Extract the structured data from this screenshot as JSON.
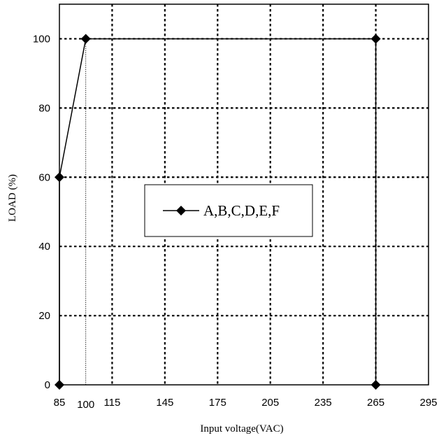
{
  "chart_data": {
    "type": "line",
    "title": "",
    "xlabel": "Input voltage(VAC)",
    "ylabel": "LOAD (%)",
    "xlim": [
      85,
      295
    ],
    "ylim": [
      0,
      110
    ],
    "x_ticks": [
      85,
      100,
      115,
      145,
      175,
      205,
      235,
      265,
      295
    ],
    "y_ticks": [
      0,
      20,
      40,
      60,
      80,
      100
    ],
    "grid": true,
    "legend_position": "center",
    "series": [
      {
        "name": "A,B,C,D,E,F",
        "marker": "diamond",
        "color": "#000000",
        "x": [
          85,
          85,
          100,
          265,
          265
        ],
        "y": [
          0,
          60,
          100,
          100,
          0
        ]
      }
    ],
    "annotations": [
      {
        "type": "vertical-dotted-line",
        "x": 100,
        "y_from": 0,
        "y_to": 100
      }
    ]
  }
}
